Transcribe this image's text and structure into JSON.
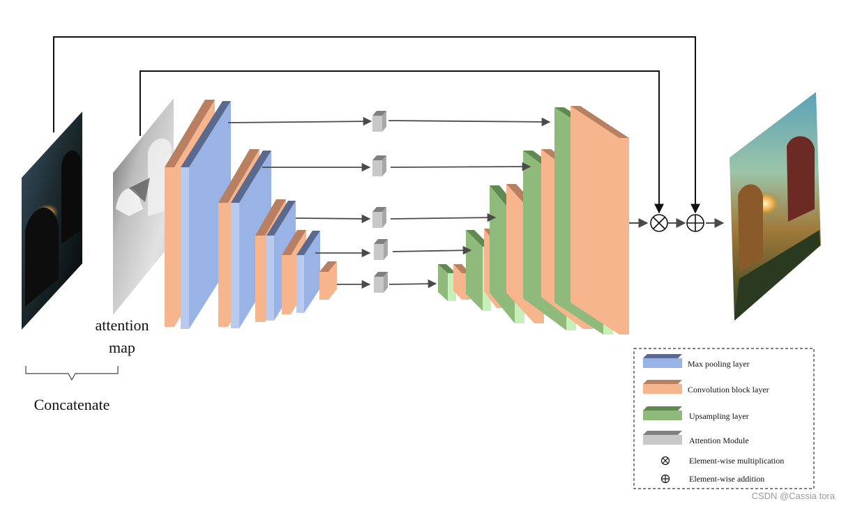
{
  "labels": {
    "attention_map_line1": "attention",
    "attention_map_line2": "map",
    "concatenate": "Concatenate"
  },
  "legend": {
    "max_pooling": "Max pooling layer",
    "convolution": "Convolution block layer",
    "upsampling": "Upsampling layer",
    "attention_module": "Attention Module",
    "multiplication": "Element-wise multiplication",
    "addition": "Element-wise addition"
  },
  "watermark": "CSDN @Cassia tora",
  "colors": {
    "max_pooling_front": "#9ab3e6",
    "max_pooling_top": "#5a6a8e",
    "max_pooling_side": "#b8cbef",
    "convolution_front": "#f6b58c",
    "convolution_top": "#b88060",
    "upsampling_front": "#8fba7c",
    "upsampling_top": "#5e8a52",
    "upsampling_side": "#c7f0b8",
    "attention_front": "#c8c8c8",
    "attention_top": "#808080"
  }
}
